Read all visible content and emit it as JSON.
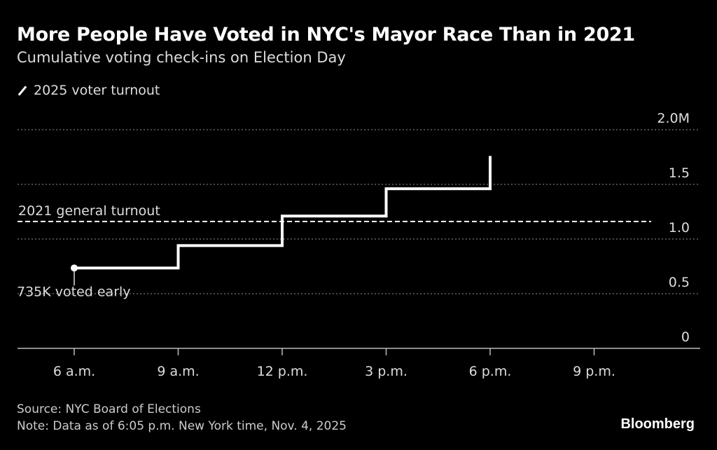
{
  "chart_data": {
    "type": "line",
    "title": "More People Have Voted in NYC's Mayor Race Than in 2021",
    "subtitle": "Cumulative voting check-ins on Election Day",
    "legend": [
      "2025 voter turnout"
    ],
    "legend_placement": "top-left",
    "x_ticks": [
      6,
      9,
      12,
      15,
      18,
      21
    ],
    "x_tick_labels": [
      "6 a.m.",
      "9 a.m.",
      "12 p.m.",
      "3 p.m.",
      "6 p.m.",
      "9 p.m."
    ],
    "xlim": [
      5,
      22.3
    ],
    "y_ticks": [
      0,
      0.5,
      1.0,
      1.5,
      2.0
    ],
    "y_tick_labels": [
      "0",
      "0.5",
      "1.0",
      "1.5",
      "2.0M"
    ],
    "ylim": [
      0,
      2.0
    ],
    "series": [
      {
        "name": "2025 voter turnout",
        "step": true,
        "x": [
          6,
          9,
          12,
          15,
          18
        ],
        "values": [
          0.735,
          0.94,
          1.21,
          1.46,
          1.76
        ]
      }
    ],
    "reference_line": {
      "label": "2021 general turnout",
      "value": 1.16
    },
    "annotations": [
      {
        "label": "735K voted early",
        "x": 6,
        "value": 0.735
      }
    ],
    "grid": true
  },
  "footer": {
    "source": "Source: NYC Board of Elections",
    "note": "Note: Data as of 6:05 p.m. New York time, Nov. 4, 2025",
    "brand": "Bloomberg"
  }
}
